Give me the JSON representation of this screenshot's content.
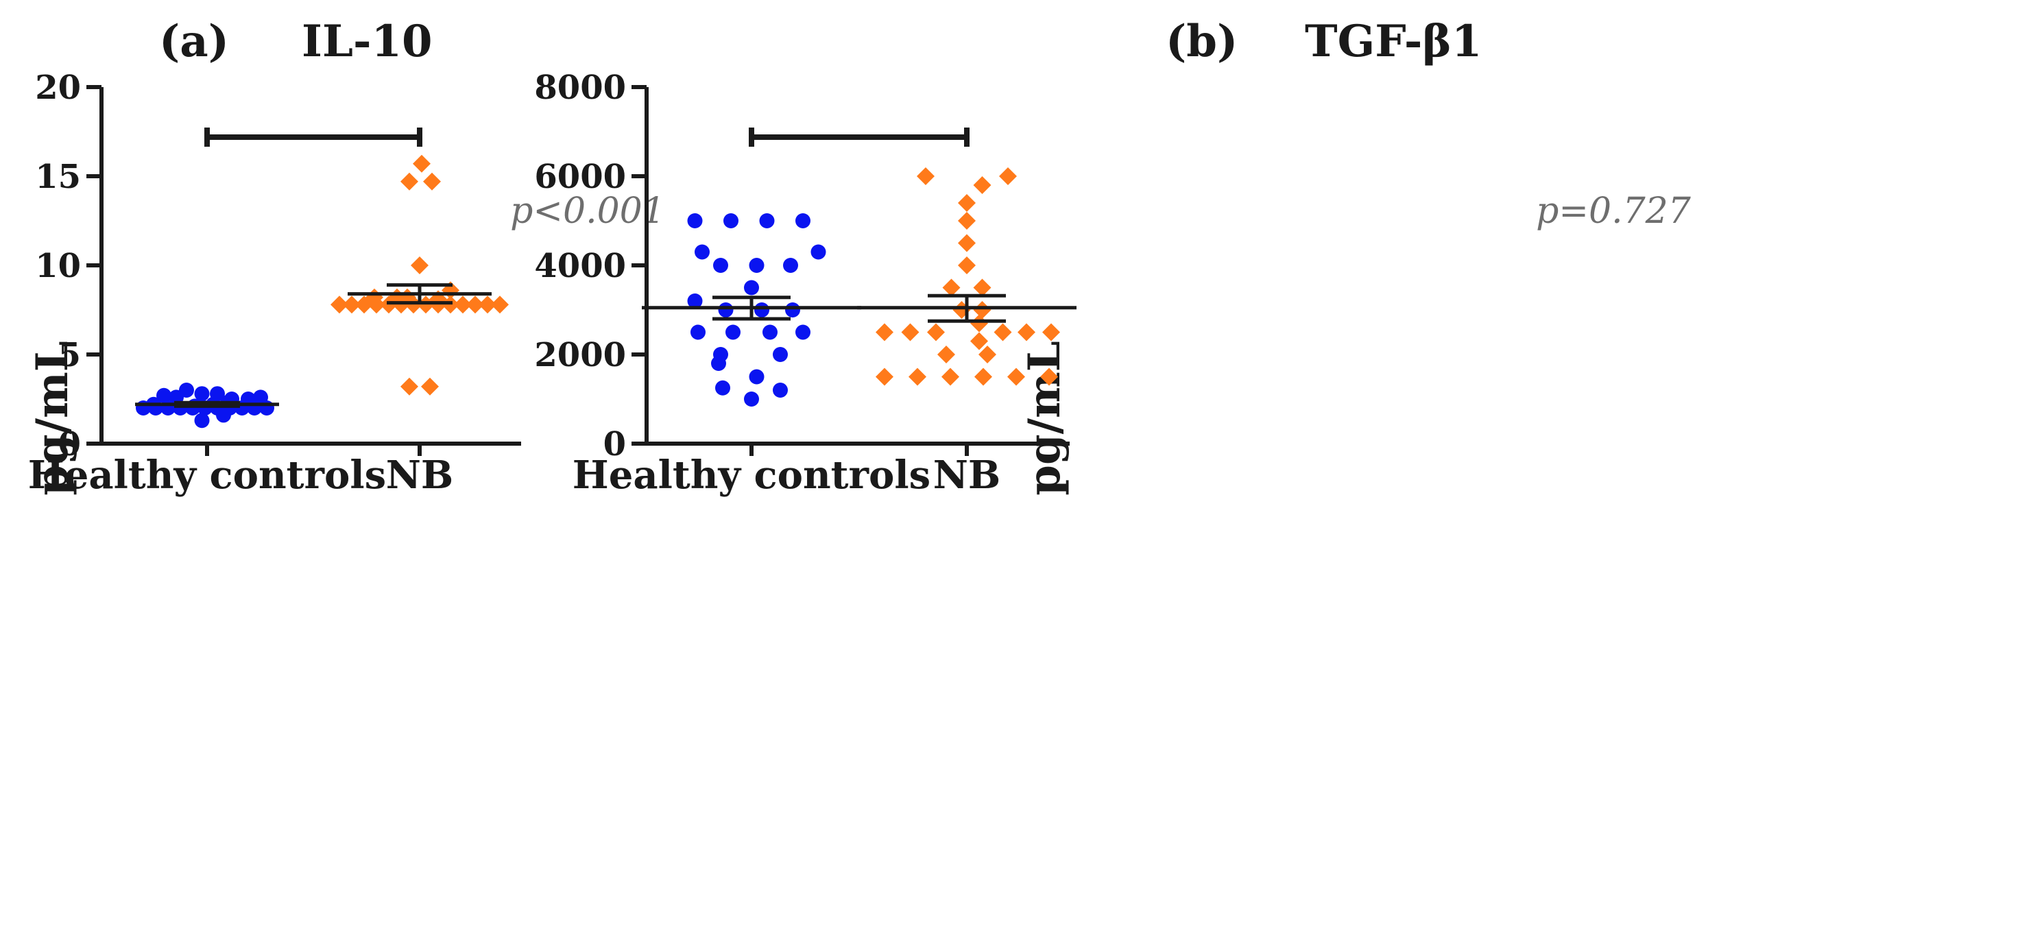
{
  "colors": {
    "healthy": "#0a14f0",
    "nb": "#ff7a1a",
    "axis": "#1a1a1a",
    "pvalue": "#6e6e6e"
  },
  "chart_data": [
    {
      "type": "scatter",
      "panel_label": "(a)",
      "title": "IL-10",
      "ylabel": "pg/mL",
      "xlabel": "",
      "categories": [
        "Healthy controls",
        "NB"
      ],
      "ylim": [
        0,
        20
      ],
      "yticks": [
        0,
        5,
        10,
        15,
        20
      ],
      "p_value": "p<0.001",
      "series": [
        {
          "name": "Healthy controls",
          "marker": "circle",
          "color": "#0a14f0",
          "mean": 2.2,
          "sem_low": 2.1,
          "sem_high": 2.3,
          "values": [
            {
              "y": 2.7,
              "x": -0.42
            },
            {
              "y": 3.0,
              "x": -0.2
            },
            {
              "y": 2.6,
              "x": -0.3
            },
            {
              "y": 2.8,
              "x": -0.05
            },
            {
              "y": 2.8,
              "x": 0.1
            },
            {
              "y": 2.5,
              "x": 0.24
            },
            {
              "y": 2.6,
              "x": 0.52
            },
            {
              "y": 2.5,
              "x": 0.4
            },
            {
              "y": 2.2,
              "x": -0.52
            },
            {
              "y": 2.1,
              "x": -0.12
            },
            {
              "y": 2.2,
              "x": 0.06
            },
            {
              "y": 2.3,
              "x": 0.2
            },
            {
              "y": 2.0,
              "x": -0.62
            },
            {
              "y": 2.0,
              "x": -0.5
            },
            {
              "y": 2.0,
              "x": -0.38
            },
            {
              "y": 2.0,
              "x": -0.26
            },
            {
              "y": 2.0,
              "x": -0.14
            },
            {
              "y": 2.0,
              "x": -0.02
            },
            {
              "y": 2.0,
              "x": 0.1
            },
            {
              "y": 2.0,
              "x": 0.22
            },
            {
              "y": 2.0,
              "x": 0.34
            },
            {
              "y": 2.0,
              "x": 0.46
            },
            {
              "y": 2.0,
              "x": 0.58
            },
            {
              "y": 1.6,
              "x": 0.16
            },
            {
              "y": 1.3,
              "x": -0.05
            }
          ]
        },
        {
          "name": "NB",
          "marker": "diamond",
          "color": "#ff7a1a",
          "mean": 8.4,
          "sem_low": 7.9,
          "sem_high": 8.9,
          "values": [
            {
              "y": 15.7,
              "x": 0.02
            },
            {
              "y": 14.7,
              "x": -0.1
            },
            {
              "y": 14.7,
              "x": 0.12
            },
            {
              "y": 10.0,
              "x": 0.0
            },
            {
              "y": 8.6,
              "x": 0.3
            },
            {
              "y": 8.2,
              "x": -0.44
            },
            {
              "y": 8.2,
              "x": -0.22
            },
            {
              "y": 8.2,
              "x": -0.12
            },
            {
              "y": 8.1,
              "x": 0.18
            },
            {
              "y": 7.8,
              "x": -0.78
            },
            {
              "y": 7.8,
              "x": -0.66
            },
            {
              "y": 7.8,
              "x": -0.54
            },
            {
              "y": 7.8,
              "x": -0.42
            },
            {
              "y": 7.8,
              "x": -0.3
            },
            {
              "y": 7.8,
              "x": -0.18
            },
            {
              "y": 7.8,
              "x": -0.06
            },
            {
              "y": 7.8,
              "x": 0.06
            },
            {
              "y": 7.8,
              "x": 0.18
            },
            {
              "y": 7.8,
              "x": 0.3
            },
            {
              "y": 7.8,
              "x": 0.42
            },
            {
              "y": 7.8,
              "x": 0.54
            },
            {
              "y": 7.8,
              "x": 0.66
            },
            {
              "y": 7.8,
              "x": 0.78
            },
            {
              "y": 3.2,
              "x": -0.1
            },
            {
              "y": 3.2,
              "x": 0.1
            }
          ]
        }
      ]
    },
    {
      "type": "scatter",
      "panel_label": "(b)",
      "title": "TGF-β1",
      "ylabel": "pg/mL",
      "xlabel": "",
      "categories": [
        "Healthy controls",
        "NB"
      ],
      "ylim": [
        0,
        8000
      ],
      "yticks": [
        0,
        2000,
        4000,
        6000,
        8000
      ],
      "p_value": "p=0.727",
      "series": [
        {
          "name": "Healthy controls",
          "marker": "circle",
          "color": "#0a14f0",
          "mean": 3050,
          "sem_low": 2800,
          "sem_high": 3280,
          "values": [
            {
              "y": 5000,
              "x": -0.55
            },
            {
              "y": 5000,
              "x": -0.2
            },
            {
              "y": 5000,
              "x": 0.15
            },
            {
              "y": 5000,
              "x": 0.5
            },
            {
              "y": 4300,
              "x": -0.48
            },
            {
              "y": 4300,
              "x": 0.65
            },
            {
              "y": 4000,
              "x": -0.3
            },
            {
              "y": 4000,
              "x": 0.05
            },
            {
              "y": 4000,
              "x": 0.38
            },
            {
              "y": 3500,
              "x": 0.0
            },
            {
              "y": 3200,
              "x": -0.55
            },
            {
              "y": 3000,
              "x": -0.25
            },
            {
              "y": 3000,
              "x": 0.1
            },
            {
              "y": 3000,
              "x": 0.4
            },
            {
              "y": 2500,
              "x": -0.52
            },
            {
              "y": 2500,
              "x": -0.18
            },
            {
              "y": 2500,
              "x": 0.18
            },
            {
              "y": 2500,
              "x": 0.5
            },
            {
              "y": 2000,
              "x": -0.3
            },
            {
              "y": 2000,
              "x": 0.28
            },
            {
              "y": 1800,
              "x": -0.32
            },
            {
              "y": 1500,
              "x": 0.05
            },
            {
              "y": 1250,
              "x": -0.28
            },
            {
              "y": 1200,
              "x": 0.28
            },
            {
              "y": 1000,
              "x": 0.0
            }
          ]
        },
        {
          "name": "NB",
          "marker": "diamond",
          "color": "#ff7a1a",
          "mean": 3050,
          "sem_low": 2750,
          "sem_high": 3320,
          "values": [
            {
              "y": 6000,
              "x": -0.4
            },
            {
              "y": 6000,
              "x": 0.4
            },
            {
              "y": 5800,
              "x": 0.15
            },
            {
              "y": 5400,
              "x": 0.0
            },
            {
              "y": 5000,
              "x": 0.0
            },
            {
              "y": 4500,
              "x": 0.0
            },
            {
              "y": 4000,
              "x": 0.0
            },
            {
              "y": 3500,
              "x": -0.15
            },
            {
              "y": 3500,
              "x": 0.15
            },
            {
              "y": 3000,
              "x": -0.05
            },
            {
              "y": 3000,
              "x": 0.15
            },
            {
              "y": 2700,
              "x": 0.12
            },
            {
              "y": 2500,
              "x": -0.8
            },
            {
              "y": 2500,
              "x": -0.55
            },
            {
              "y": 2500,
              "x": -0.3
            },
            {
              "y": 2500,
              "x": 0.35
            },
            {
              "y": 2500,
              "x": 0.58
            },
            {
              "y": 2500,
              "x": 0.82
            },
            {
              "y": 2300,
              "x": 0.12
            },
            {
              "y": 2000,
              "x": -0.2
            },
            {
              "y": 2000,
              "x": 0.2
            },
            {
              "y": 1500,
              "x": -0.8
            },
            {
              "y": 1500,
              "x": -0.48
            },
            {
              "y": 1500,
              "x": -0.16
            },
            {
              "y": 1500,
              "x": 0.16
            },
            {
              "y": 1500,
              "x": 0.48
            },
            {
              "y": 1500,
              "x": 0.8
            }
          ]
        }
      ]
    }
  ]
}
